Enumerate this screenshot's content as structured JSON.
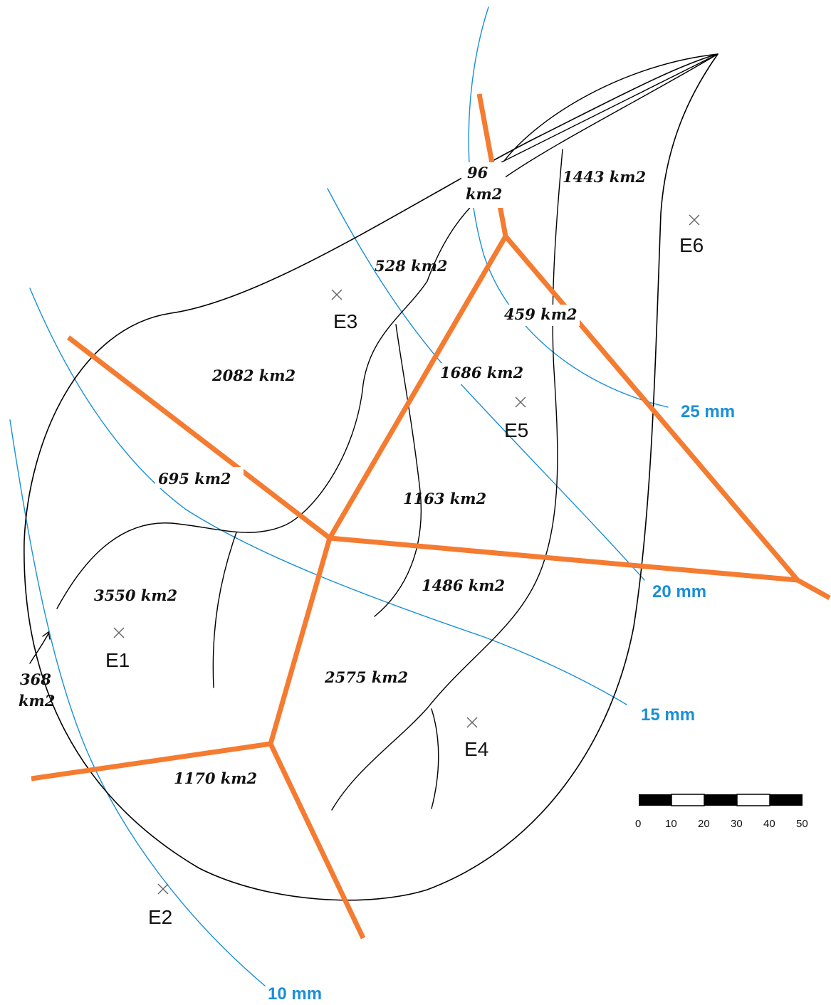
{
  "subcatchments": [
    {
      "label": "96",
      "label2": "km2"
    },
    {
      "label": "1443 km2"
    },
    {
      "label": "528 km2"
    },
    {
      "label": "459 km2"
    },
    {
      "label": "2082 km2"
    },
    {
      "label": "1686 km2"
    },
    {
      "label": "695 km2"
    },
    {
      "label": "1163 km2"
    },
    {
      "label": "3550 km2"
    },
    {
      "label": "1486 km2"
    },
    {
      "label": "368",
      "label2": "km2"
    },
    {
      "label": "2575 km2"
    },
    {
      "label": "1170 km2"
    }
  ],
  "stations": [
    {
      "name": "E1"
    },
    {
      "name": "E2"
    },
    {
      "name": "E3"
    },
    {
      "name": "E4"
    },
    {
      "name": "E5"
    },
    {
      "name": "E6"
    }
  ],
  "isohyets": [
    {
      "label": "10 mm"
    },
    {
      "label": "15 mm"
    },
    {
      "label": "20 mm"
    },
    {
      "label": "25 mm"
    }
  ],
  "scale_bar": {
    "ticks": [
      "0",
      "10",
      "20",
      "30",
      "40",
      "50"
    ]
  },
  "colors": {
    "boundary": "#000000",
    "isohyet": "#1a8fd8",
    "thiessen": "#f47b30",
    "station_marker": "#666666"
  }
}
